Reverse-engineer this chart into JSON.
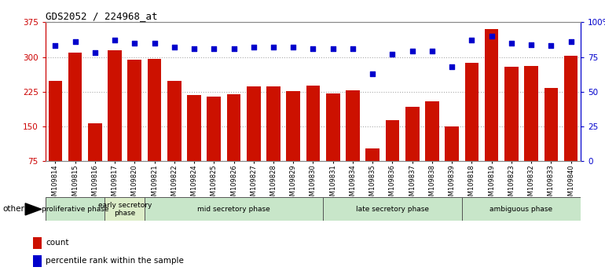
{
  "title": "GDS2052 / 224968_at",
  "samples": [
    "GSM109814",
    "GSM109815",
    "GSM109816",
    "GSM109817",
    "GSM109820",
    "GSM109821",
    "GSM109822",
    "GSM109824",
    "GSM109825",
    "GSM109826",
    "GSM109827",
    "GSM109828",
    "GSM109829",
    "GSM109830",
    "GSM109831",
    "GSM109834",
    "GSM109835",
    "GSM109836",
    "GSM109837",
    "GSM109838",
    "GSM109839",
    "GSM109818",
    "GSM109819",
    "GSM109823",
    "GSM109832",
    "GSM109833",
    "GSM109840"
  ],
  "counts": [
    248,
    310,
    157,
    315,
    295,
    296,
    248,
    218,
    215,
    220,
    237,
    237,
    226,
    238,
    221,
    228,
    103,
    163,
    192,
    205,
    150,
    288,
    360,
    279,
    280,
    234,
    302
  ],
  "percentile_ranks": [
    83,
    86,
    78,
    87,
    85,
    85,
    82,
    81,
    81,
    81,
    82,
    82,
    82,
    81,
    81,
    81,
    63,
    77,
    79,
    79,
    68,
    87,
    90,
    85,
    84,
    83,
    86
  ],
  "bar_color": "#cc1100",
  "dot_color": "#0000cc",
  "ylim_left": [
    75,
    375
  ],
  "ylim_right": [
    0,
    100
  ],
  "yticks_left": [
    75,
    150,
    225,
    300,
    375
  ],
  "yticks_right": [
    0,
    25,
    50,
    75,
    100
  ],
  "yticklabels_right": [
    "0",
    "25",
    "50",
    "75",
    "100%"
  ],
  "phases": [
    {
      "label": "proliferative phase",
      "start": 0,
      "end": 3,
      "color": "#c8e6c9"
    },
    {
      "label": "early secretory\nphase",
      "start": 3,
      "end": 5,
      "color": "#dcedc8"
    },
    {
      "label": "mid secretory phase",
      "start": 5,
      "end": 14,
      "color": "#c8e6c9"
    },
    {
      "label": "late secretory phase",
      "start": 14,
      "end": 21,
      "color": "#c8e6c9"
    },
    {
      "label": "ambiguous phase",
      "start": 21,
      "end": 27,
      "color": "#c8e6c9"
    }
  ],
  "bg_color": "#ffffff",
  "grid_color": "#aaaaaa",
  "phase_border_color": "#555555",
  "left_axis_color": "#cc0000",
  "right_axis_color": "#0000cc"
}
